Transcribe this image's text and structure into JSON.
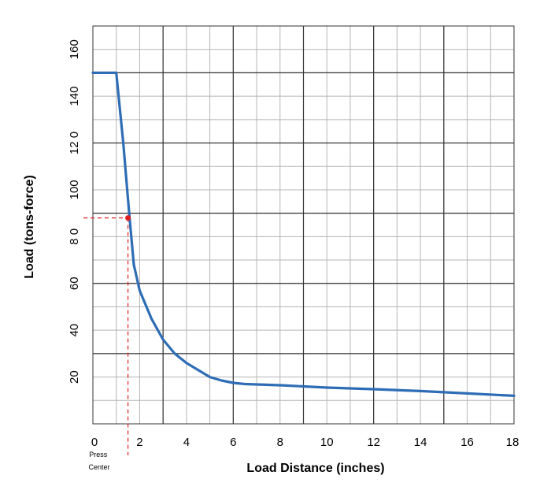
{
  "chart_data": {
    "type": "line",
    "title": "",
    "xlabel": "Load Distance (inches)",
    "ylabel": "Load (tons-force)",
    "xlim": [
      0,
      18
    ],
    "ylim": [
      0,
      170
    ],
    "x_ticks": [
      0,
      2,
      4,
      6,
      8,
      10,
      12,
      14,
      16,
      18
    ],
    "x_tick_labels": [
      "0",
      "2",
      "4",
      "6",
      "8",
      "10",
      "12",
      "14",
      "16",
      "18"
    ],
    "y_ticks": [
      20,
      40,
      60,
      80,
      100,
      120,
      140,
      160
    ],
    "y_tick_labels": [
      "20",
      "40",
      "60",
      "8 0",
      "100",
      "12 0",
      "140",
      "160"
    ],
    "annotation": "Press Center",
    "grid": true,
    "series_color": "#2e6db5",
    "marker_color": "#e02020",
    "series": [
      {
        "x": [
          0,
          1,
          1.3,
          1.55,
          1.75,
          2,
          2.5,
          3,
          3.5,
          4,
          4.5,
          5,
          5.5,
          6,
          6.5,
          8,
          10,
          12,
          14,
          16,
          18
        ],
        "y": [
          150,
          150,
          120,
          90,
          68,
          57,
          45,
          36,
          30,
          26,
          23,
          20,
          18.5,
          17.5,
          17,
          16.5,
          15.5,
          14.8,
          14,
          13,
          12
        ]
      }
    ],
    "marker": {
      "x": 1.5,
      "y": 88
    }
  }
}
